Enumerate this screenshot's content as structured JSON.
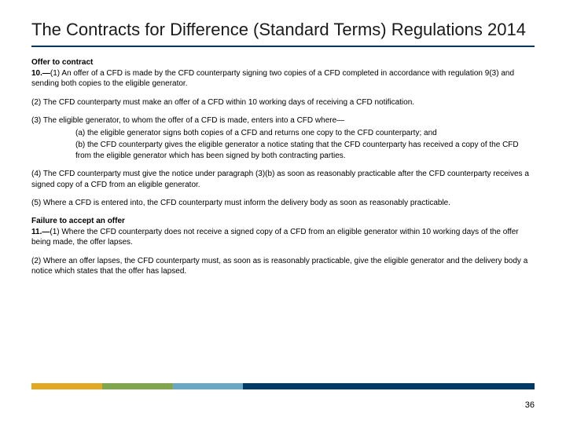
{
  "title": "The Contracts for Difference (Standard Terms) Regulations 2014",
  "section10": {
    "heading": "Offer to contract",
    "p1_num": "10.—",
    "p1": "(1) An offer of a CFD is made by the CFD counterparty signing two copies of a CFD completed in accordance with regulation 9(3) and sending both copies to the eligible generator.",
    "p2": "(2) The CFD counterparty must make an offer of a CFD within 10 working days of receiving a CFD notification.",
    "p3_lead": "(3) The eligible generator, to whom the offer of a CFD is made, enters into a CFD where—",
    "p3a": "(a) the eligible generator signs both copies of a CFD and returns one copy to the CFD counterparty; and",
    "p3b": "(b) the CFD counterparty gives the eligible generator a notice stating that the CFD counterparty has received a copy of the CFD from the eligible generator which has been signed by both contracting parties.",
    "p4": "(4) The CFD counterparty must give the notice under paragraph (3)(b) as soon as reasonably practicable after the CFD counterparty receives a signed copy of a CFD from an eligible generator.",
    "p5": "(5) Where a CFD is entered into, the CFD counterparty must inform the delivery body as soon as reasonably practicable."
  },
  "section11": {
    "heading": "Failure to accept an offer",
    "p1_num": "11.—",
    "p1": "(1) Where the CFD counterparty does not receive a signed copy of a CFD from an eligible generator within 10 working days of the offer being made, the offer lapses.",
    "p2": "(2) Where an offer lapses, the CFD counterparty must, as soon as is reasonably practicable, give the eligible generator and the delivery body a notice which states that the offer has lapsed."
  },
  "pageNumber": "36",
  "bar": {
    "segments": [
      {
        "color": "#e3a822",
        "width": "14%"
      },
      {
        "color": "#7fa64a",
        "width": "14%"
      },
      {
        "color": "#6aa7c4",
        "width": "14%"
      },
      {
        "color": "#003a66",
        "width": "58%"
      }
    ]
  },
  "titleRuleColor": "#003a66"
}
